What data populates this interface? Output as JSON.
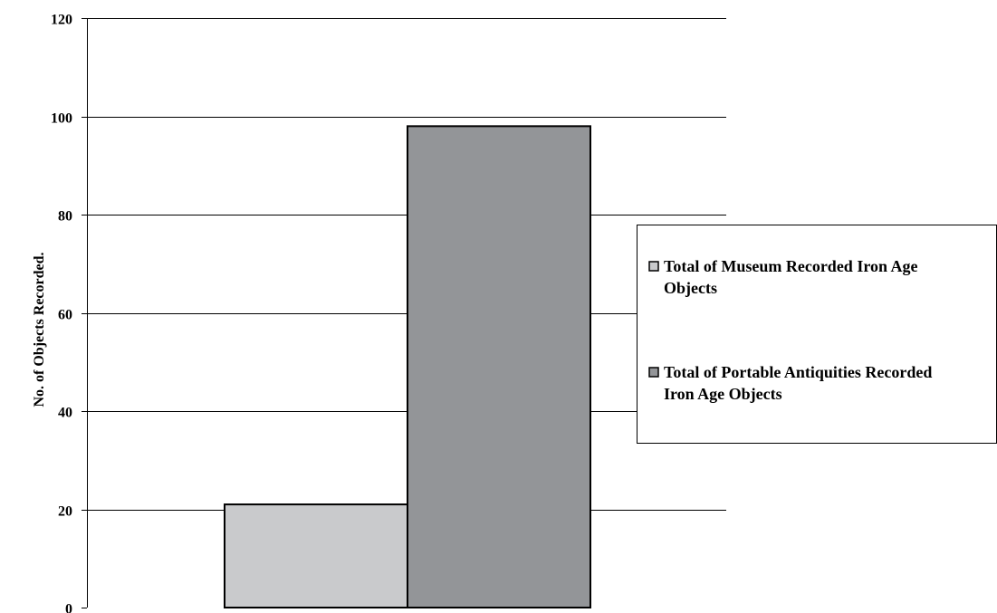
{
  "chart_data": {
    "type": "bar",
    "title": "",
    "xlabel": "",
    "ylabel": "No. of Objects Recorded.",
    "ylim": [
      0,
      120
    ],
    "yticks": [
      0,
      20,
      40,
      60,
      80,
      100,
      120
    ],
    "grid": true,
    "legend_position": "right",
    "series": [
      {
        "name": "Total of Museum Recorded Iron Age Objects",
        "legend_lines": [
          "Total of Museum Recorded Iron Age",
          "Objects"
        ],
        "values": [
          21
        ],
        "color": "#c9cacc"
      },
      {
        "name": "Total of Portable Antiquities Recorded Iron Age Objects",
        "legend_lines": [
          "Total of Portable Antiquities Recorded",
          "Iron Age Objects"
        ],
        "values": [
          98
        ],
        "color": "#939598"
      }
    ]
  }
}
